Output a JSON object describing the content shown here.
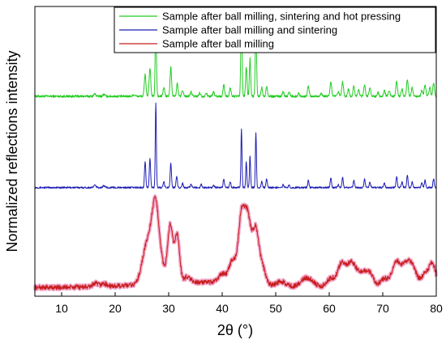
{
  "chart_data": {
    "type": "line",
    "title": "",
    "xlabel": "2θ (°)",
    "ylabel": "Normalized reflections intensity",
    "xlim": [
      5,
      80
    ],
    "x_ticks": [
      10,
      20,
      30,
      40,
      50,
      60,
      70,
      80
    ],
    "x_tick_labels": [
      "10",
      "20",
      "30",
      "40",
      "50",
      "60",
      "70",
      "80"
    ],
    "y_ticks_shown": false,
    "grid": false,
    "legend_position": "top-right",
    "series": [
      {
        "name": "Sample after ball milling, sintering and hot pressing",
        "color": "#22cc22",
        "baseline": 0.66,
        "noise": 0.004,
        "peaks": [
          [
            16.2,
            0.008,
            0.2
          ],
          [
            17.9,
            0.006,
            0.2
          ],
          [
            23.5,
            0.006,
            0.2
          ],
          [
            25.6,
            0.075,
            0.15
          ],
          [
            26.5,
            0.095,
            0.15
          ],
          [
            27.6,
            0.25,
            0.12
          ],
          [
            29.1,
            0.03,
            0.15
          ],
          [
            30.4,
            0.1,
            0.14
          ],
          [
            31.6,
            0.045,
            0.14
          ],
          [
            32.6,
            0.02,
            0.15
          ],
          [
            34.2,
            0.015,
            0.15
          ],
          [
            35.8,
            0.012,
            0.15
          ],
          [
            37.0,
            0.012,
            0.15
          ],
          [
            38.4,
            0.015,
            0.15
          ],
          [
            40.3,
            0.04,
            0.14
          ],
          [
            41.5,
            0.03,
            0.14
          ],
          [
            43.6,
            0.3,
            0.12
          ],
          [
            44.5,
            0.1,
            0.13
          ],
          [
            45.2,
            0.13,
            0.12
          ],
          [
            46.3,
            0.25,
            0.12
          ],
          [
            47.4,
            0.03,
            0.14
          ],
          [
            48.3,
            0.035,
            0.14
          ],
          [
            51.4,
            0.015,
            0.15
          ],
          [
            52.5,
            0.015,
            0.15
          ],
          [
            54.3,
            0.01,
            0.15
          ],
          [
            56.1,
            0.035,
            0.15
          ],
          [
            58.5,
            0.012,
            0.15
          ],
          [
            60.3,
            0.05,
            0.15
          ],
          [
            61.7,
            0.015,
            0.15
          ],
          [
            62.5,
            0.05,
            0.15
          ],
          [
            63.6,
            0.025,
            0.15
          ],
          [
            64.6,
            0.035,
            0.15
          ],
          [
            65.5,
            0.025,
            0.15
          ],
          [
            66.6,
            0.04,
            0.15
          ],
          [
            67.6,
            0.03,
            0.15
          ],
          [
            69.1,
            0.015,
            0.15
          ],
          [
            70.3,
            0.02,
            0.15
          ],
          [
            71.2,
            0.02,
            0.15
          ],
          [
            72.6,
            0.05,
            0.15
          ],
          [
            73.6,
            0.025,
            0.15
          ],
          [
            74.6,
            0.055,
            0.15
          ],
          [
            75.5,
            0.03,
            0.15
          ],
          [
            77.3,
            0.02,
            0.15
          ],
          [
            77.9,
            0.04,
            0.15
          ],
          [
            78.8,
            0.03,
            0.15
          ],
          [
            79.5,
            0.045,
            0.15
          ]
        ]
      },
      {
        "name": "Sample after ball milling and sintering",
        "color": "#1f1fb4",
        "baseline": 0.345,
        "noise": 0.003,
        "peaks": [
          [
            16.2,
            0.008,
            0.2
          ],
          [
            17.9,
            0.006,
            0.2
          ],
          [
            25.6,
            0.09,
            0.12
          ],
          [
            26.5,
            0.1,
            0.12
          ],
          [
            27.6,
            0.29,
            0.1
          ],
          [
            29.1,
            0.02,
            0.12
          ],
          [
            30.4,
            0.085,
            0.12
          ],
          [
            31.5,
            0.04,
            0.12
          ],
          [
            32.6,
            0.015,
            0.12
          ],
          [
            34.2,
            0.012,
            0.12
          ],
          [
            36.1,
            0.012,
            0.12
          ],
          [
            38.4,
            0.01,
            0.12
          ],
          [
            40.3,
            0.03,
            0.12
          ],
          [
            41.5,
            0.02,
            0.12
          ],
          [
            43.6,
            0.2,
            0.1
          ],
          [
            44.5,
            0.09,
            0.1
          ],
          [
            45.2,
            0.11,
            0.1
          ],
          [
            46.3,
            0.19,
            0.1
          ],
          [
            47.4,
            0.02,
            0.12
          ],
          [
            48.3,
            0.03,
            0.12
          ],
          [
            51.4,
            0.01,
            0.12
          ],
          [
            52.5,
            0.01,
            0.12
          ],
          [
            56.1,
            0.025,
            0.12
          ],
          [
            60.3,
            0.035,
            0.12
          ],
          [
            61.7,
            0.01,
            0.12
          ],
          [
            62.5,
            0.035,
            0.12
          ],
          [
            64.6,
            0.025,
            0.12
          ],
          [
            66.6,
            0.03,
            0.12
          ],
          [
            67.6,
            0.02,
            0.12
          ],
          [
            70.3,
            0.015,
            0.12
          ],
          [
            72.6,
            0.04,
            0.12
          ],
          [
            73.6,
            0.02,
            0.12
          ],
          [
            74.6,
            0.045,
            0.12
          ],
          [
            75.5,
            0.02,
            0.12
          ],
          [
            77.3,
            0.015,
            0.12
          ],
          [
            77.9,
            0.025,
            0.12
          ],
          [
            79.5,
            0.03,
            0.12
          ]
        ]
      },
      {
        "name": "Sample after ball milling",
        "color": "#c81e1e",
        "band_color": "#f2a7c8",
        "baseline": 0.0,
        "noise": 0.008,
        "broad": [
          [
            36,
            0.018,
            10
          ]
        ],
        "peaks": [
          [
            16.3,
            0.012,
            0.5
          ],
          [
            17.9,
            0.01,
            0.5
          ],
          [
            25.6,
            0.09,
            0.8
          ],
          [
            26.8,
            0.12,
            0.8
          ],
          [
            27.6,
            0.2,
            0.6
          ],
          [
            28.6,
            0.06,
            0.6
          ],
          [
            30.3,
            0.2,
            0.5
          ],
          [
            31.6,
            0.16,
            0.45
          ],
          [
            33.5,
            0.02,
            0.6
          ],
          [
            40.0,
            0.03,
            0.7
          ],
          [
            42.0,
            0.08,
            0.7
          ],
          [
            43.6,
            0.23,
            0.55
          ],
          [
            44.6,
            0.18,
            0.5
          ],
          [
            45.3,
            0.1,
            0.5
          ],
          [
            46.3,
            0.18,
            0.55
          ],
          [
            47.5,
            0.06,
            0.6
          ],
          [
            51.0,
            0.015,
            0.8
          ],
          [
            55.3,
            0.022,
            0.8
          ],
          [
            56.6,
            0.02,
            0.8
          ],
          [
            60.3,
            0.03,
            0.8
          ],
          [
            62.3,
            0.08,
            0.7
          ],
          [
            63.8,
            0.06,
            0.7
          ],
          [
            64.8,
            0.05,
            0.7
          ],
          [
            66.3,
            0.045,
            0.7
          ],
          [
            67.6,
            0.045,
            0.7
          ],
          [
            70.3,
            0.03,
            0.8
          ],
          [
            72.4,
            0.08,
            0.7
          ],
          [
            73.7,
            0.05,
            0.7
          ],
          [
            74.8,
            0.06,
            0.7
          ],
          [
            75.8,
            0.05,
            0.7
          ],
          [
            77.9,
            0.045,
            0.7
          ],
          [
            79.3,
            0.08,
            0.6
          ]
        ]
      }
    ]
  }
}
